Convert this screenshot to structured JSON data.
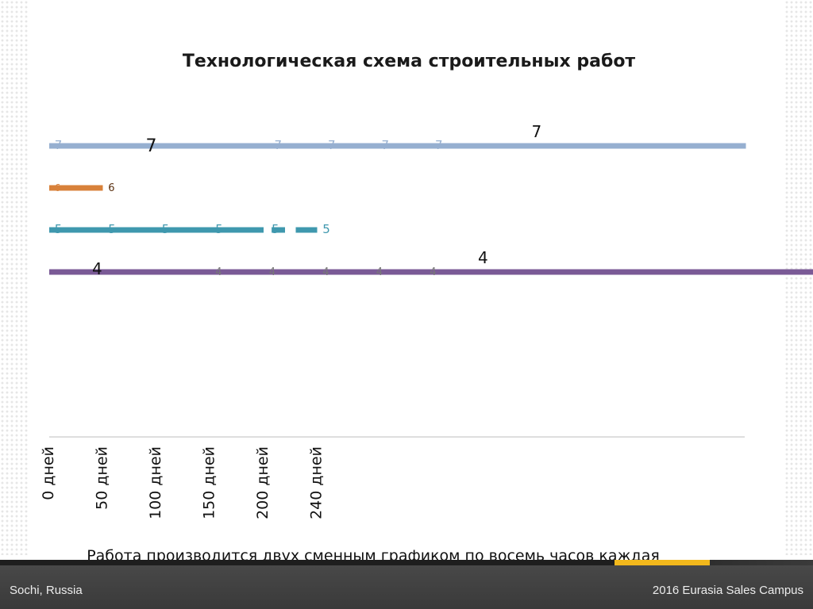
{
  "chart_data": {
    "type": "bar",
    "title": "Технологическая схема строительных работ",
    "x_ticks": [
      "0 дней",
      "50 дней",
      "100 дней",
      "150 дней",
      "200 дней",
      "240 дней"
    ],
    "series": [
      {
        "row": "7",
        "color": "#96afd0",
        "segments": [
          [
            0,
            13
          ]
        ],
        "labels": [
          {
            "text": "7",
            "at": 0.1,
            "style": "small"
          },
          {
            "text": "7",
            "at": 1.8,
            "style": "large"
          },
          {
            "text": "7",
            "at": 4.2,
            "style": "small"
          },
          {
            "text": "7",
            "at": 5.2,
            "style": "small"
          },
          {
            "text": "7",
            "at": 6.2,
            "style": "small"
          },
          {
            "text": "7",
            "at": 7.2,
            "style": "small"
          },
          {
            "text": "7",
            "at": 9.0,
            "style": "large-above"
          }
        ]
      },
      {
        "row": "6",
        "color": "#d8813a",
        "segments": [
          [
            0,
            1.0
          ]
        ],
        "labels": [
          {
            "text": "6",
            "at": 0.1,
            "style": "tiny"
          },
          {
            "text": "6",
            "at": 1.1,
            "style": "tiny-dark"
          }
        ]
      },
      {
        "row": "5",
        "color": "#3f98ae",
        "segments": [
          [
            0,
            4.0
          ],
          [
            4.15,
            4.4
          ],
          [
            4.6,
            5.0
          ]
        ],
        "labels": [
          {
            "text": "5",
            "at": 0.1,
            "style": "small"
          },
          {
            "text": "5",
            "at": 1.1,
            "style": "small"
          },
          {
            "text": "5",
            "at": 2.1,
            "style": "small"
          },
          {
            "text": "5",
            "at": 3.1,
            "style": "small"
          },
          {
            "text": "5",
            "at": 4.15,
            "style": "small"
          },
          {
            "text": "5",
            "at": 5.1,
            "style": "small"
          }
        ]
      },
      {
        "row": "4",
        "color": "#7a5a96",
        "segments": [
          [
            0,
            16
          ]
        ],
        "labels": [
          {
            "text": "4",
            "at": 0.8,
            "style": "large-below"
          },
          {
            "text": "4",
            "at": 3.1,
            "style": "small-gray"
          },
          {
            "text": "4",
            "at": 4.1,
            "style": "small-gray"
          },
          {
            "text": "4",
            "at": 5.1,
            "style": "small-gray"
          },
          {
            "text": "4",
            "at": 6.1,
            "style": "small-gray"
          },
          {
            "text": "4",
            "at": 7.1,
            "style": "small-gray"
          },
          {
            "text": "4",
            "at": 8.0,
            "style": "large-above"
          }
        ]
      }
    ]
  },
  "caption": "Работа производится двух сменным графиком по восемь часов каждая",
  "footer": {
    "left": "Sochi, Russia",
    "right": "2016 Eurasia Sales Campus"
  }
}
